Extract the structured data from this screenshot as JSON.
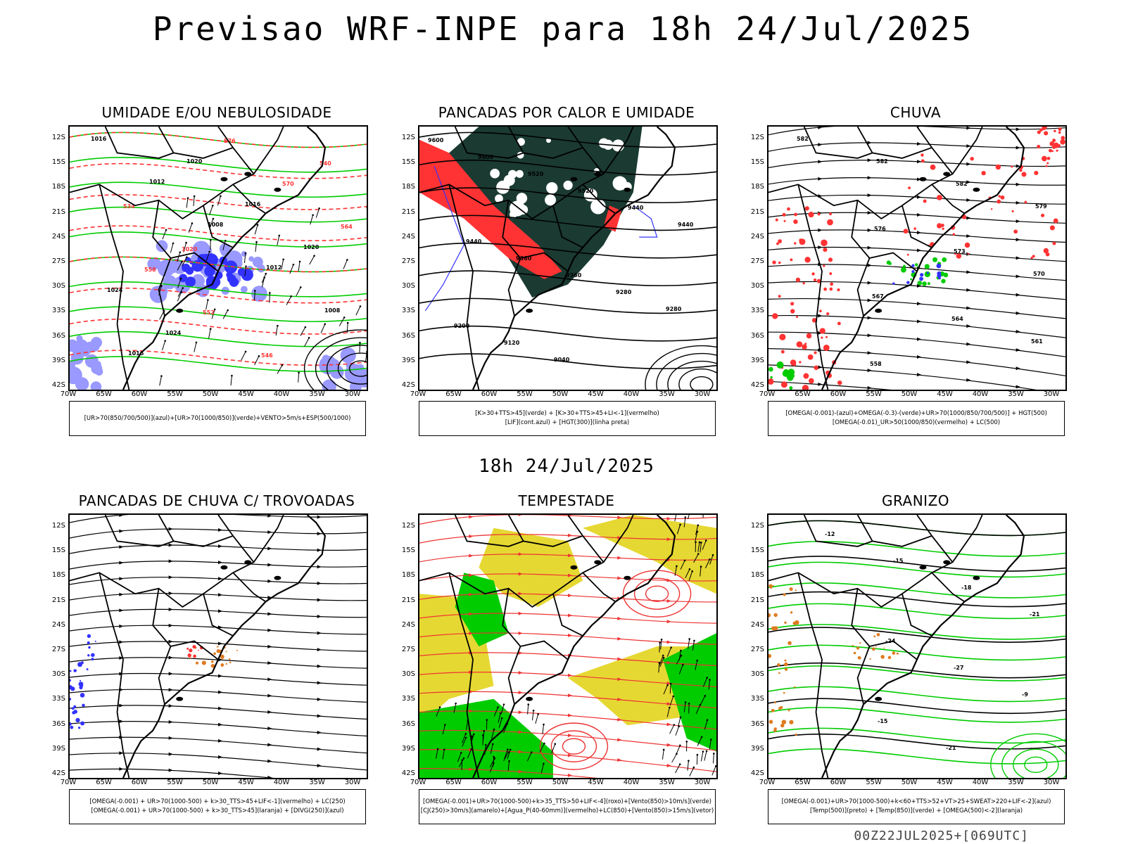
{
  "header": {
    "title": "Previsao WRF-INPE  para 18h 24/Jul/2025"
  },
  "mid_title": "18h 24/Jul/2025",
  "footer": "00Z22JUL2025+[069UTC]",
  "axes": {
    "lat_labels": [
      "12S",
      "15S",
      "18S",
      "21S",
      "24S",
      "27S",
      "30S",
      "33S",
      "36S",
      "39S",
      "42S"
    ],
    "lon_labels": [
      "70W",
      "65W",
      "60W",
      "55W",
      "50W",
      "45W",
      "40W",
      "35W",
      "30W"
    ]
  },
  "panels": [
    {
      "id": "umidade",
      "title": "UMIDADE E/OU NEBULOSIDADE",
      "legend": [
        "[UR>70(850/700/500)](azul)+[UR>70(1000/850)](verde)+VENTO>5m/s+ESP(500/1000)"
      ],
      "contour_labels": [
        "1016",
        "1012",
        "1008",
        "1012",
        "1008",
        "1016",
        "1020",
        "1016",
        "1020",
        "1024",
        "1024",
        "576",
        "570",
        "564",
        "558",
        "552",
        "546",
        "540",
        "534",
        "1020"
      ]
    },
    {
      "id": "pancadas-calor",
      "title": "PANCADAS POR CALOR E UMIDADE",
      "legend": [
        "[K>30+TTS>45](verde) + [K>30+TTS>45+LI<-1](vermelho)",
        "[LIF](cont.azul) + [HGT(300)](linha preta)"
      ],
      "contour_labels": [
        "9600",
        "9600",
        "9520",
        "9520",
        "9440",
        "9440",
        "9440",
        "9360",
        "9360",
        "9280",
        "9280",
        "9200",
        "9120",
        "9040"
      ]
    },
    {
      "id": "chuva",
      "title": "CHUVA",
      "legend": [
        "[OMEGA(-0.001)-(azul)+OMEGA(-0.3)-(verde)+UR>70(1000/850/700/500)] + HGT(500)",
        "[OMEGA(-0.01)_UR>50(1000/850)(vermelho) + LC(500)"
      ],
      "contour_labels": [
        "582",
        "582",
        "582",
        "579",
        "576",
        "573",
        "570",
        "567",
        "564",
        "561",
        "558"
      ]
    },
    {
      "id": "trovoadas",
      "title": "PANCADAS DE CHUVA C/ TROVOADAS",
      "legend": [
        "[OMEGA(-0.001) + UR>70(1000-500) + k>30_TTS>45+LIF<-1](vermelho) + LC(250)",
        "[OMEGA(-0.001) + UR>70(1000-500) + k>30_TTS>45](laranja) + [DIVG(250)](azul)"
      ],
      "contour_labels": []
    },
    {
      "id": "tempestade",
      "title": "TEMPESTADE",
      "legend": [
        "[OMEGA(-0.001)+UR>70(1000-500)+k>35_TTS>50+LIF<-4](roxo)+[Vento(850)>10m/s](verde)",
        "[CJ(250)>30m/s](amarelo)+[Agua_P(40-60mm)](vermelho)+LC(850)+[Vento(850)>15m/s](vetor)"
      ],
      "contour_labels": []
    },
    {
      "id": "granizo",
      "title": "GRANIZO",
      "legend": [
        "[OMEGA(-0.001)+UR>70(1000-500)+k<60+TTS>52+VT>25+SWEAT>220+LIF<-2](azul)",
        "[Temp(500)](preto) + [Temp(850)](verde) + [OMEGA(500)<-2](laranja)"
      ],
      "contour_labels": [
        "-12",
        "-15",
        "-18",
        "-21",
        "-24",
        "-27",
        "-9",
        "-15",
        "-21"
      ]
    }
  ],
  "colors": {
    "blue": "#3333ff",
    "green": "#00cc00",
    "red": "#ff3333",
    "darkgreen": "#1a3a32",
    "yellow": "#e6d832",
    "orange": "#e07a20",
    "lightblue": "#9999ff"
  }
}
